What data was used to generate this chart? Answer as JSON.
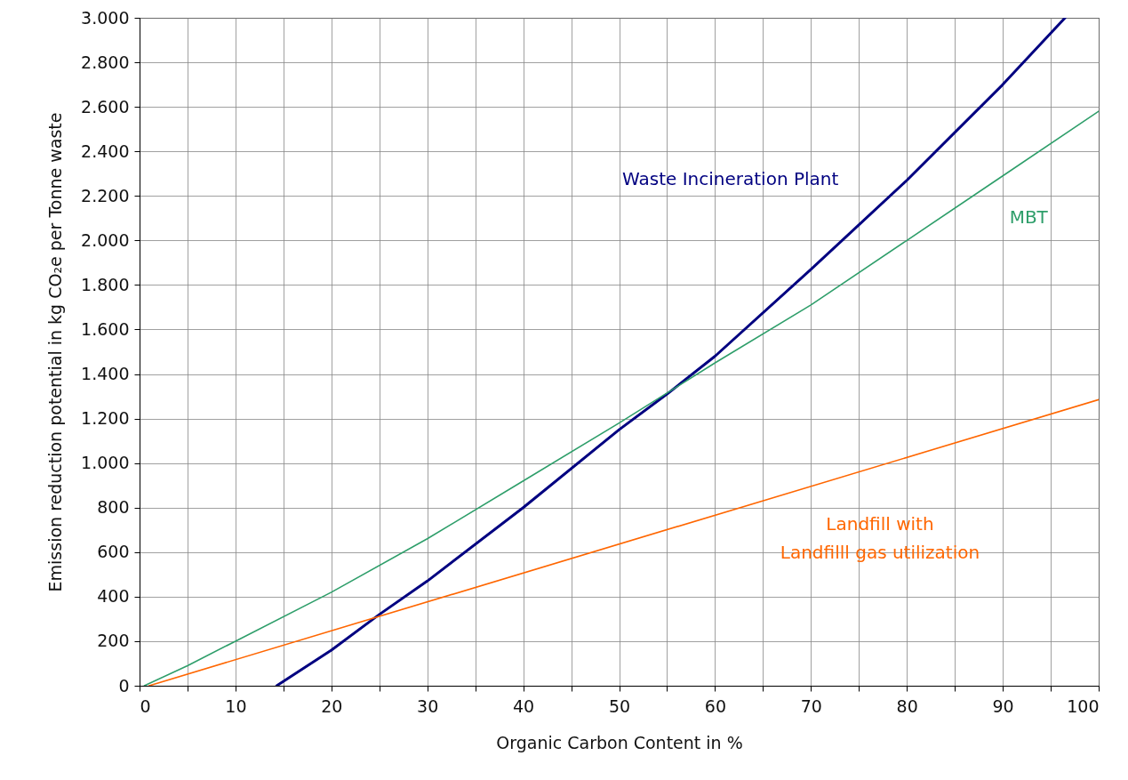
{
  "chart_data": {
    "type": "line",
    "xlabel": "Organic Carbon Content in %",
    "ylabel": "Emission reduction potential in kg CO₂e per Tonne waste",
    "xlim": [
      0,
      100
    ],
    "xticks": [
      0,
      {
        "value": 5,
        "label": null
      },
      10,
      {
        "value": 15,
        "label": null
      },
      20,
      {
        "value": 25,
        "label": null
      },
      30,
      {
        "value": 35,
        "label": null
      },
      40,
      {
        "value": 45,
        "label": null
      },
      50,
      {
        "value": 55,
        "label": null
      },
      60,
      {
        "value": 65,
        "label": null
      },
      70,
      {
        "value": 75,
        "label": null
      },
      80,
      {
        "value": 85,
        "label": null
      },
      90,
      {
        "value": 95,
        "label": null
      },
      100
    ],
    "ylim": [
      0,
      3000
    ],
    "yticks": [
      0,
      200,
      400,
      600,
      800,
      {
        "value": 1000,
        "label": "1.000"
      },
      {
        "value": 1200,
        "label": "1.200"
      },
      {
        "value": 1400,
        "label": "1.400"
      },
      {
        "value": 1600,
        "label": "1.600"
      },
      {
        "value": 1800,
        "label": "1.800"
      },
      {
        "value": 2000,
        "label": "2.000"
      },
      {
        "value": 2200,
        "label": "2.200"
      },
      {
        "value": 2400,
        "label": "2.400"
      },
      {
        "value": 2600,
        "label": "2.600"
      },
      {
        "value": 2800,
        "label": "2.800"
      },
      {
        "value": 3000,
        "label": "3.000"
      }
    ],
    "grid": true,
    "legend": false,
    "marker": "none",
    "line_style": "solid",
    "series": [
      {
        "name": "Waste Incineration Plant",
        "color": "#000080",
        "x": [
          14.3,
          20,
          25,
          30,
          40,
          50,
          55,
          60,
          70,
          80,
          90,
          96.5
        ],
        "values": [
          0,
          160,
          320,
          470,
          800,
          1150,
          1310,
          1480,
          1870,
          2270,
          2700,
          3000
        ]
      },
      {
        "name": "MBT",
        "color": "#2e9e6a",
        "x": [
          0.5,
          5,
          10,
          20,
          30,
          40,
          50,
          60,
          70,
          80,
          90,
          100
        ],
        "values": [
          0,
          90,
          200,
          420,
          660,
          920,
          1180,
          1450,
          1710,
          2000,
          2290,
          2580
        ]
      },
      {
        "name": "Landfill with\nLandfilll gas utilization",
        "color": "#ff6600",
        "x": [
          1,
          100
        ],
        "values": [
          0,
          1285
        ]
      }
    ]
  }
}
